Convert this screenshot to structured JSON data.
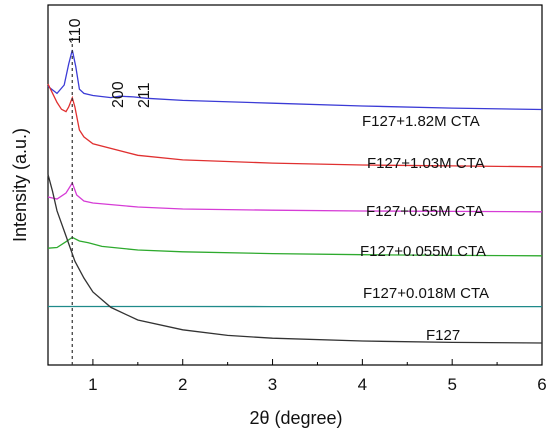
{
  "chart_data": {
    "type": "line",
    "title": "",
    "xlabel": "2θ (degree)",
    "ylabel": "Intensity (a.u.)",
    "xlim": [
      0.5,
      6
    ],
    "x_ticks": [
      "1",
      "2",
      "3",
      "4",
      "5",
      "6"
    ],
    "y_ticks_shown": false,
    "grid": false,
    "legend": "inline labels beside each curve",
    "reference_line": {
      "x": 0.77,
      "style": "dotted"
    },
    "peak_labels": [
      "110",
      "200",
      "211"
    ],
    "series": [
      {
        "name": "F127+1.82M CTA",
        "color": "#3b3bd6",
        "points": [
          [
            0.5,
            0.24
          ],
          [
            0.6,
            0.19
          ],
          [
            0.68,
            0.25
          ],
          [
            0.73,
            0.4
          ],
          [
            0.77,
            0.5
          ],
          [
            0.81,
            0.38
          ],
          [
            0.85,
            0.22
          ],
          [
            0.9,
            0.19
          ],
          [
            1.0,
            0.175
          ],
          [
            1.2,
            0.16
          ],
          [
            1.3,
            0.17
          ],
          [
            1.45,
            0.165
          ],
          [
            1.6,
            0.155
          ],
          [
            2.0,
            0.14
          ],
          [
            3.0,
            0.12
          ],
          [
            4.0,
            0.1
          ],
          [
            5.0,
            0.085
          ],
          [
            6.0,
            0.075
          ]
        ]
      },
      {
        "name": "F127+1.03M CTA",
        "color": "#e03030",
        "points": [
          [
            0.5,
            0.2
          ],
          [
            0.55,
            0.18
          ],
          [
            0.6,
            0.16
          ],
          [
            0.65,
            0.145
          ],
          [
            0.7,
            0.14
          ],
          [
            0.73,
            0.15
          ],
          [
            0.77,
            0.17
          ],
          [
            0.8,
            0.15
          ],
          [
            0.85,
            0.1
          ],
          [
            0.9,
            0.085
          ],
          [
            1.0,
            0.07
          ],
          [
            1.5,
            0.045
          ],
          [
            2.0,
            0.035
          ],
          [
            3.0,
            0.028
          ],
          [
            4.0,
            0.024
          ],
          [
            5.0,
            0.022
          ],
          [
            6.0,
            0.02
          ]
        ]
      },
      {
        "name": "F127+0.55M CTA",
        "color": "#d63cd6",
        "points": [
          [
            0.5,
            0.045
          ],
          [
            0.6,
            0.04
          ],
          [
            0.7,
            0.055
          ],
          [
            0.77,
            0.08
          ],
          [
            0.82,
            0.05
          ],
          [
            0.9,
            0.035
          ],
          [
            1.0,
            0.03
          ],
          [
            1.5,
            0.02
          ],
          [
            2.0,
            0.015
          ],
          [
            3.0,
            0.012
          ],
          [
            4.0,
            0.01
          ],
          [
            5.0,
            0.009
          ],
          [
            6.0,
            0.008
          ]
        ]
      },
      {
        "name": "F127+0.055M CTA",
        "color": "#2eaa2e",
        "points": [
          [
            0.5,
            0.03
          ],
          [
            0.6,
            0.032
          ],
          [
            0.7,
            0.048
          ],
          [
            0.77,
            0.06
          ],
          [
            0.85,
            0.05
          ],
          [
            0.95,
            0.045
          ],
          [
            1.1,
            0.035
          ],
          [
            1.5,
            0.025
          ],
          [
            2.0,
            0.02
          ],
          [
            3.0,
            0.015
          ],
          [
            4.0,
            0.012
          ],
          [
            5.0,
            0.01
          ],
          [
            6.0,
            0.009
          ]
        ]
      },
      {
        "name": "F127+0.018M CTA",
        "color": "#1f8a8a",
        "points": [
          [
            0.5,
            0.005
          ],
          [
            1.0,
            0.005
          ],
          [
            2.0,
            0.005
          ],
          [
            3.0,
            0.004
          ],
          [
            4.0,
            0.004
          ],
          [
            5.0,
            0.004
          ],
          [
            6.0,
            0.004
          ]
        ]
      },
      {
        "name": "F127",
        "color": "#333333",
        "points": [
          [
            0.5,
            0.62
          ],
          [
            0.55,
            0.56
          ],
          [
            0.6,
            0.49
          ],
          [
            0.7,
            0.4
          ],
          [
            0.8,
            0.31
          ],
          [
            0.9,
            0.25
          ],
          [
            1.0,
            0.2
          ],
          [
            1.2,
            0.145
          ],
          [
            1.5,
            0.1
          ],
          [
            2.0,
            0.065
          ],
          [
            2.5,
            0.045
          ],
          [
            3.0,
            0.035
          ],
          [
            4.0,
            0.025
          ],
          [
            5.0,
            0.02
          ],
          [
            6.0,
            0.018
          ]
        ]
      }
    ]
  }
}
